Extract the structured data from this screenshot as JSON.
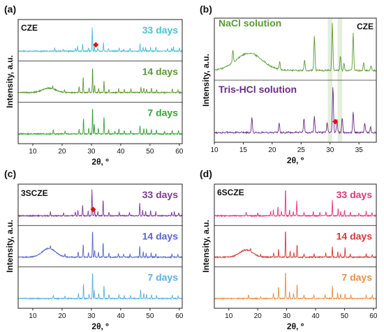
{
  "chart_data": [
    {
      "panel": "(a)",
      "type": "line",
      "sample": "CZE",
      "xlabel": "2θ, º",
      "ylabel": "Intensity, a.u.",
      "xlim": [
        5,
        61
      ],
      "xticks": [
        10,
        20,
        30,
        40,
        50,
        60
      ],
      "grid": false,
      "series": [
        {
          "name": "33 days",
          "color": "#4dc0d0",
          "halo": null,
          "peaks": [
            [
              17.5,
              0.12
            ],
            [
              20.3,
              0.08
            ],
            [
              24.6,
              0.1
            ],
            [
              25.3,
              0.18
            ],
            [
              27.0,
              0.25
            ],
            [
              29.0,
              0.12
            ],
            [
              30.3,
              0.85
            ],
            [
              31.0,
              0.18
            ],
            [
              32.2,
              0.12
            ],
            [
              34.1,
              0.3
            ],
            [
              35.8,
              0.1
            ],
            [
              39.5,
              0.12
            ],
            [
              41.0,
              0.08
            ],
            [
              43.2,
              0.1
            ],
            [
              46.6,
              0.28
            ],
            [
              47.7,
              0.14
            ],
            [
              48.5,
              0.12
            ],
            [
              50.2,
              0.12
            ],
            [
              52.0,
              0.14
            ],
            [
              56.0,
              0.08
            ],
            [
              57.4,
              0.1
            ],
            [
              58.0,
              0.16
            ],
            [
              60.0,
              0.12
            ]
          ]
        },
        {
          "name": "14 days",
          "color": "#5a9a34",
          "halo": [
            15.5,
            0.15
          ],
          "peaks": [
            [
              16.8,
              0.12
            ],
            [
              20.8,
              0.08
            ],
            [
              25.8,
              0.2
            ],
            [
              27.2,
              0.55
            ],
            [
              29.2,
              0.15
            ],
            [
              30.4,
              0.9
            ],
            [
              31.1,
              0.25
            ],
            [
              32.5,
              0.15
            ],
            [
              34.3,
              0.42
            ],
            [
              36.0,
              0.12
            ],
            [
              39.3,
              0.15
            ],
            [
              41.2,
              0.12
            ],
            [
              43.5,
              0.12
            ],
            [
              46.9,
              0.2
            ],
            [
              47.9,
              0.15
            ],
            [
              48.8,
              0.12
            ],
            [
              50.5,
              0.15
            ],
            [
              52.3,
              0.1
            ],
            [
              57.6,
              0.12
            ],
            [
              59.5,
              0.1
            ]
          ]
        },
        {
          "name": "7 days",
          "color": "#3aa23a",
          "halo": null,
          "peaks": [
            [
              17.0,
              0.14
            ],
            [
              21.0,
              0.08
            ],
            [
              25.8,
              0.16
            ],
            [
              27.3,
              0.55
            ],
            [
              29.1,
              0.2
            ],
            [
              30.4,
              0.92
            ],
            [
              31.0,
              0.35
            ],
            [
              32.4,
              0.2
            ],
            [
              34.3,
              0.6
            ],
            [
              35.9,
              0.15
            ],
            [
              38.0,
              0.1
            ],
            [
              39.4,
              0.18
            ],
            [
              41.2,
              0.12
            ],
            [
              43.4,
              0.12
            ],
            [
              46.6,
              0.28
            ],
            [
              47.9,
              0.2
            ],
            [
              48.8,
              0.18
            ],
            [
              50.5,
              0.18
            ],
            [
              52.2,
              0.15
            ],
            [
              55.0,
              0.1
            ],
            [
              57.6,
              0.14
            ],
            [
              59.7,
              0.12
            ]
          ]
        }
      ],
      "markers": [
        {
          "series": "33 days",
          "x": 31.5,
          "color": "#e01010"
        }
      ]
    },
    {
      "panel": "(b)",
      "type": "line",
      "sample": "CZE",
      "xlabel": "2θ, º",
      "ylabel": "Intensity, a.u.",
      "xlim": [
        10,
        38
      ],
      "xticks": [
        10,
        15,
        20,
        25,
        30,
        35
      ],
      "grid": false,
      "highlight": [
        [
          29.6,
          30.4
        ],
        [
          31.3,
          32.1
        ]
      ],
      "series": [
        {
          "name": "NaCl solution",
          "color": "#5a9a34",
          "halo": [
            16.0,
            0.35
          ],
          "peaks": [
            [
              13.2,
              0.25
            ],
            [
              21.3,
              0.15
            ],
            [
              25.6,
              0.2
            ],
            [
              27.3,
              0.72
            ],
            [
              30.4,
              0.95
            ],
            [
              31.8,
              0.3
            ],
            [
              32.4,
              0.15
            ],
            [
              34.0,
              0.75
            ],
            [
              35.8,
              0.15
            ],
            [
              37.1,
              0.1
            ]
          ]
        },
        {
          "name": "Tris-HCl solution",
          "color": "#6a2a8a",
          "halo": null,
          "peaks": [
            [
              16.5,
              0.3
            ],
            [
              21.2,
              0.2
            ],
            [
              25.5,
              0.28
            ],
            [
              27.3,
              0.32
            ],
            [
              29.5,
              0.2
            ],
            [
              30.5,
              0.95
            ],
            [
              31.2,
              0.25
            ],
            [
              32.1,
              0.3
            ],
            [
              34.0,
              0.42
            ],
            [
              36.0,
              0.2
            ],
            [
              37.0,
              0.12
            ]
          ]
        }
      ],
      "markers": [
        {
          "series": "Tris-HCl solution",
          "x": 30.9,
          "color": "#e01010"
        }
      ]
    },
    {
      "panel": "(c)",
      "type": "line",
      "sample": "3SCZE",
      "xlabel": "2θ, º",
      "ylabel": "Intensity, a.u.",
      "xlim": [
        5,
        61
      ],
      "xticks": [
        10,
        20,
        30,
        40,
        50,
        60
      ],
      "grid": false,
      "series": [
        {
          "name": "33 days",
          "color": "#7a3a9a",
          "halo": null,
          "peaks": [
            [
              16.0,
              0.15
            ],
            [
              20.5,
              0.1
            ],
            [
              24.5,
              0.15
            ],
            [
              25.4,
              0.2
            ],
            [
              27.0,
              0.38
            ],
            [
              28.9,
              0.18
            ],
            [
              30.2,
              0.9
            ],
            [
              31.1,
              0.25
            ],
            [
              32.2,
              0.15
            ],
            [
              34.0,
              0.55
            ],
            [
              36.0,
              0.12
            ],
            [
              39.5,
              0.12
            ],
            [
              43.0,
              0.12
            ],
            [
              46.5,
              0.45
            ],
            [
              47.5,
              0.2
            ],
            [
              48.5,
              0.15
            ],
            [
              50.2,
              0.18
            ],
            [
              52.0,
              0.14
            ],
            [
              57.4,
              0.12
            ],
            [
              58.3,
              0.15
            ],
            [
              59.8,
              0.12
            ]
          ]
        },
        {
          "name": "14 days",
          "color": "#5a66c8",
          "halo": [
            15.5,
            0.3
          ],
          "peaks": [
            [
              16.0,
              0.12
            ],
            [
              21.0,
              0.1
            ],
            [
              25.5,
              0.18
            ],
            [
              27.2,
              0.45
            ],
            [
              29.0,
              0.18
            ],
            [
              30.4,
              0.95
            ],
            [
              31.1,
              0.25
            ],
            [
              32.4,
              0.18
            ],
            [
              34.0,
              0.5
            ],
            [
              36.0,
              0.14
            ],
            [
              39.2,
              0.12
            ],
            [
              41.0,
              0.1
            ],
            [
              43.2,
              0.12
            ],
            [
              46.5,
              0.4
            ],
            [
              47.7,
              0.2
            ],
            [
              48.7,
              0.14
            ],
            [
              50.4,
              0.15
            ],
            [
              52.0,
              0.12
            ],
            [
              57.5,
              0.12
            ],
            [
              59.5,
              0.1
            ]
          ]
        },
        {
          "name": "7 days",
          "color": "#5bb0e0",
          "halo": null,
          "peaks": [
            [
              17.0,
              0.12
            ],
            [
              21.0,
              0.08
            ],
            [
              25.6,
              0.18
            ],
            [
              27.3,
              0.5
            ],
            [
              29.2,
              0.15
            ],
            [
              30.4,
              0.95
            ],
            [
              31.0,
              0.3
            ],
            [
              32.5,
              0.18
            ],
            [
              34.3,
              0.45
            ],
            [
              36.0,
              0.12
            ],
            [
              39.4,
              0.14
            ],
            [
              41.2,
              0.1
            ],
            [
              43.4,
              0.12
            ],
            [
              46.8,
              0.3
            ],
            [
              47.9,
              0.18
            ],
            [
              48.8,
              0.14
            ],
            [
              50.5,
              0.14
            ],
            [
              52.2,
              0.12
            ],
            [
              57.6,
              0.12
            ],
            [
              59.6,
              0.1
            ]
          ]
        }
      ],
      "markers": [
        {
          "series": "33 days",
          "x": 30.6,
          "color": "#e01010"
        }
      ]
    },
    {
      "panel": "(d)",
      "type": "line",
      "sample": "6SCZE",
      "xlabel": "2θ, º",
      "ylabel": "Intensity, a.u.",
      "xlim": [
        5,
        61
      ],
      "xticks": [
        10,
        20,
        30,
        40,
        50,
        60
      ],
      "grid": false,
      "series": [
        {
          "name": "33 days",
          "color": "#e0357a",
          "halo": null,
          "peaks": [
            [
              16.0,
              0.12
            ],
            [
              20.0,
              0.1
            ],
            [
              24.5,
              0.15
            ],
            [
              25.4,
              0.2
            ],
            [
              27.0,
              0.3
            ],
            [
              28.2,
              0.15
            ],
            [
              29.6,
              0.95
            ],
            [
              31.0,
              0.2
            ],
            [
              32.3,
              0.15
            ],
            [
              33.5,
              0.55
            ],
            [
              36.0,
              0.12
            ],
            [
              39.2,
              0.15
            ],
            [
              41.5,
              0.12
            ],
            [
              43.6,
              0.14
            ],
            [
              45.8,
              0.55
            ],
            [
              47.8,
              0.25
            ],
            [
              48.7,
              0.15
            ],
            [
              50.0,
              0.2
            ],
            [
              52.0,
              0.12
            ],
            [
              55.0,
              0.1
            ],
            [
              57.5,
              0.18
            ],
            [
              59.5,
              0.12
            ]
          ]
        },
        {
          "name": "14 days",
          "color": "#d83838",
          "halo": [
            16.0,
            0.25
          ],
          "peaks": [
            [
              17.5,
              0.1
            ],
            [
              21.0,
              0.08
            ],
            [
              25.5,
              0.15
            ],
            [
              27.2,
              0.3
            ],
            [
              29.6,
              0.95
            ],
            [
              31.2,
              0.2
            ],
            [
              32.5,
              0.15
            ],
            [
              33.6,
              0.45
            ],
            [
              36.0,
              0.12
            ],
            [
              39.5,
              0.12
            ],
            [
              43.5,
              0.14
            ],
            [
              45.8,
              0.35
            ],
            [
              47.7,
              0.2
            ],
            [
              48.6,
              0.12
            ],
            [
              50.2,
              0.35
            ],
            [
              52.0,
              0.1
            ],
            [
              57.5,
              0.12
            ],
            [
              59.6,
              0.1
            ]
          ]
        },
        {
          "name": "7 days",
          "color": "#e89048",
          "halo": null,
          "peaks": [
            [
              16.8,
              0.12
            ],
            [
              21.0,
              0.08
            ],
            [
              25.4,
              0.2
            ],
            [
              27.2,
              0.4
            ],
            [
              29.6,
              0.95
            ],
            [
              31.0,
              0.25
            ],
            [
              32.4,
              0.18
            ],
            [
              33.6,
              0.5
            ],
            [
              36.0,
              0.12
            ],
            [
              39.4,
              0.15
            ],
            [
              43.3,
              0.14
            ],
            [
              45.8,
              0.45
            ],
            [
              47.6,
              0.2
            ],
            [
              48.7,
              0.15
            ],
            [
              50.2,
              0.18
            ],
            [
              52.2,
              0.12
            ],
            [
              57.5,
              0.15
            ],
            [
              59.6,
              0.12
            ]
          ]
        }
      ]
    }
  ]
}
